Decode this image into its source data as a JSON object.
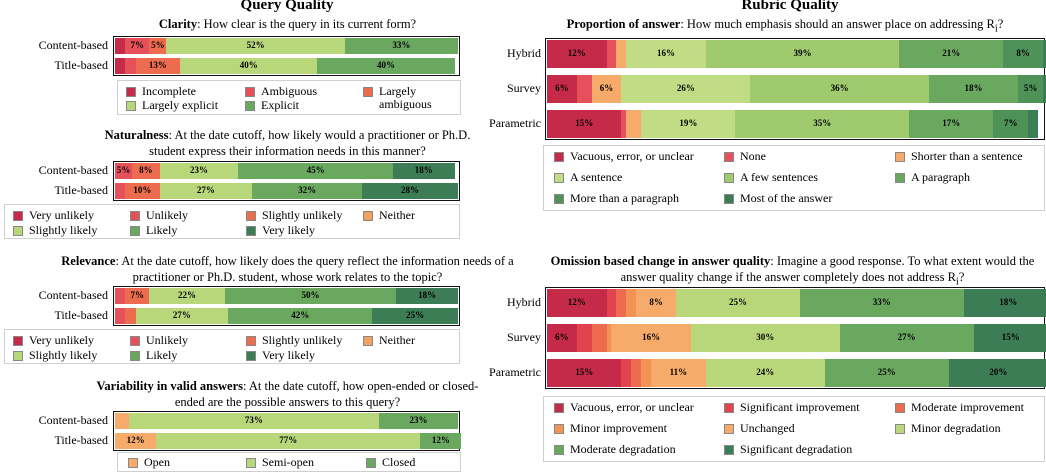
{
  "headings": {
    "left": "Query Quality",
    "right": "Rubric Quality"
  },
  "palettes": {
    "clarity": [
      "#c52a48",
      "#e5505a",
      "#ed6b4e",
      "#b8d77b",
      "#6aa860"
    ],
    "five": [
      "#c52a48",
      "#e5505a",
      "#ed6b4e",
      "#f4a15e",
      "#b8d77b",
      "#6aa860",
      "#3d7d56"
    ],
    "variability": [
      "#f7ab6a",
      "#b8d77b",
      "#6aa860"
    ],
    "proportion": [
      "#c52a48",
      "#e5505a",
      "#f7ab6a",
      "#c0dc85",
      "#9fca6e",
      "#6aa860",
      "#4f9257",
      "#3d7d56"
    ],
    "omission": [
      "#c52a48",
      "#e2434e",
      "#ed6b4e",
      "#f29356",
      "#f7ab6a",
      "#b8d77b",
      "#6aa860",
      "#3d7d56"
    ]
  },
  "panels": [
    {
      "id": "clarity",
      "title_bold": "Clarity",
      "title_rest": ": How clear is the query in its current form?",
      "legend": [
        "Incomplete",
        "Ambiguous",
        "Largely ambiguous",
        "Largely explicit",
        "Explicit"
      ]
    },
    {
      "id": "naturalness",
      "title_bold": "Naturalness",
      "title_rest": ": At the date cutoff, how likely would a practitioner or Ph.D. student express their information needs in this manner?",
      "legend": [
        "Very unlikely",
        "Unlikely",
        "Slightly unlikely",
        "Neither",
        "Slightly likely",
        "Likely",
        "Very likely"
      ]
    },
    {
      "id": "relevance",
      "title_bold": "Relevance",
      "title_rest": ": At the date cutoff, how likely does the query reflect the information needs of a practitioner or Ph.D. student, whose work relates to the topic?",
      "legend": [
        "Very unlikely",
        "Unlikely",
        "Slightly unlikely",
        "Neither",
        "Slightly likely",
        "Likely",
        "Very likely"
      ]
    },
    {
      "id": "variability",
      "title_bold": "Variability in valid answers",
      "title_rest": ": At the date cutoff, how open-ended or closed-ended are the possible answers to this query?",
      "legend": [
        "Open",
        "Semi-open",
        "Closed"
      ]
    },
    {
      "id": "proportion",
      "title_bold": "Proportion of answer",
      "title_rest": ": How much emphasis should an answer place on addressing R",
      "title_sub": "i",
      "title_end": "?",
      "legend": [
        "Vacuous, error, or unclear",
        "None",
        "Shorter than a sentence",
        "A sentence",
        "A few sentences",
        "A paragraph",
        "More than a paragraph",
        "Most of the answer"
      ]
    },
    {
      "id": "omission",
      "title_bold": "Omission based change in answer quality",
      "title_rest": ": Imagine a good response. To what extent would the answer quality change if the answer completely does not address R",
      "title_sub": "i",
      "title_end": "?",
      "legend": [
        "Vacuous, error, or unclear",
        "Significant improvement",
        "Moderate improvement",
        "Minor improvement",
        "Unchanged",
        "Minor degradation",
        "Moderate degradation",
        "Significant degradation"
      ]
    }
  ],
  "chart_data": [
    {
      "type": "bar",
      "orientation": "horizontal",
      "stacked": true,
      "normalized": true,
      "id": "clarity",
      "title": "Clarity: How clear is the query in its current form?",
      "categories": [
        "Content-based",
        "Title-based"
      ],
      "series": [
        {
          "name": "Incomplete",
          "values": [
            3,
            3
          ]
        },
        {
          "name": "Ambiguous",
          "values": [
            7,
            3
          ]
        },
        {
          "name": "Largely ambiguous",
          "values": [
            5,
            13
          ]
        },
        {
          "name": "Largely explicit",
          "values": [
            52,
            40
          ]
        },
        {
          "name": "Explicit",
          "values": [
            33,
            40
          ]
        }
      ],
      "labels": [
        [
          "",
          "7%",
          "5%",
          "52%",
          "33%"
        ],
        [
          "",
          "",
          "13%",
          "40%",
          "40%"
        ]
      ],
      "xlim": [
        0,
        100
      ]
    },
    {
      "type": "bar",
      "orientation": "horizontal",
      "stacked": true,
      "normalized": true,
      "id": "naturalness",
      "title": "Naturalness",
      "categories": [
        "Content-based",
        "Title-based"
      ],
      "series": [
        {
          "name": "Very unlikely",
          "values": [
            0,
            0
          ]
        },
        {
          "name": "Unlikely",
          "values": [
            5,
            3
          ]
        },
        {
          "name": "Slightly unlikely",
          "values": [
            8,
            10
          ]
        },
        {
          "name": "Neither",
          "values": [
            0,
            0
          ]
        },
        {
          "name": "Slightly likely",
          "values": [
            23,
            27
          ]
        },
        {
          "name": "Likely",
          "values": [
            45,
            32
          ]
        },
        {
          "name": "Very likely",
          "values": [
            18,
            28
          ]
        }
      ],
      "labels": [
        [
          "",
          "5%",
          "8%",
          "",
          "23%",
          "45%",
          "18%"
        ],
        [
          "",
          "",
          "10%",
          "",
          "27%",
          "32%",
          "28%"
        ]
      ],
      "xlim": [
        0,
        100
      ]
    },
    {
      "type": "bar",
      "orientation": "horizontal",
      "stacked": true,
      "normalized": true,
      "id": "relevance",
      "title": "Relevance",
      "categories": [
        "Content-based",
        "Title-based"
      ],
      "series": [
        {
          "name": "Very unlikely",
          "values": [
            0,
            0
          ]
        },
        {
          "name": "Unlikely",
          "values": [
            3,
            3
          ]
        },
        {
          "name": "Slightly unlikely",
          "values": [
            7,
            3
          ]
        },
        {
          "name": "Neither",
          "values": [
            0,
            0
          ]
        },
        {
          "name": "Slightly likely",
          "values": [
            22,
            27
          ]
        },
        {
          "name": "Likely",
          "values": [
            50,
            42
          ]
        },
        {
          "name": "Very likely",
          "values": [
            18,
            25
          ]
        }
      ],
      "labels": [
        [
          "",
          "",
          "7%",
          "",
          "22%",
          "50%",
          "18%"
        ],
        [
          "",
          "",
          "",
          "",
          "27%",
          "42%",
          "25%"
        ]
      ],
      "xlim": [
        0,
        100
      ]
    },
    {
      "type": "bar",
      "orientation": "horizontal",
      "stacked": true,
      "normalized": true,
      "id": "variability",
      "title": "Variability in valid answers",
      "categories": [
        "Content-based",
        "Title-based"
      ],
      "series": [
        {
          "name": "Open",
          "values": [
            4,
            12
          ]
        },
        {
          "name": "Semi-open",
          "values": [
            73,
            77
          ]
        },
        {
          "name": "Closed",
          "values": [
            23,
            12
          ]
        }
      ],
      "labels": [
        [
          "",
          "73%",
          "23%"
        ],
        [
          "12%",
          "77%",
          "12%"
        ]
      ],
      "xlim": [
        0,
        100
      ]
    },
    {
      "type": "bar",
      "orientation": "horizontal",
      "stacked": true,
      "normalized": true,
      "id": "proportion",
      "title": "Proportion of answer",
      "categories": [
        "Hybrid",
        "Survey",
        "Parametric"
      ],
      "series": [
        {
          "name": "Vacuous, error, or unclear",
          "values": [
            12,
            6,
            15
          ]
        },
        {
          "name": "None",
          "values": [
            2,
            3,
            1
          ]
        },
        {
          "name": "Shorter than a sentence",
          "values": [
            2,
            6,
            3
          ]
        },
        {
          "name": "A sentence",
          "values": [
            16,
            26,
            19
          ]
        },
        {
          "name": "A few sentences",
          "values": [
            39,
            36,
            35
          ]
        },
        {
          "name": "A paragraph",
          "values": [
            21,
            18,
            17
          ]
        },
        {
          "name": "More than a paragraph",
          "values": [
            8,
            5,
            7
          ]
        },
        {
          "name": "Most of the answer",
          "values": [
            1,
            1,
            2
          ]
        }
      ],
      "labels": [
        [
          "12%",
          "",
          "",
          "16%",
          "39%",
          "21%",
          "8%",
          ""
        ],
        [
          "6%",
          "",
          "6%",
          "26%",
          "36%",
          "18%",
          "5%",
          ""
        ],
        [
          "15%",
          "",
          "",
          "19%",
          "35%",
          "17%",
          "7%",
          ""
        ]
      ],
      "xlim": [
        0,
        100
      ]
    },
    {
      "type": "bar",
      "orientation": "horizontal",
      "stacked": true,
      "normalized": true,
      "id": "omission",
      "title": "Omission based change in answer quality",
      "categories": [
        "Hybrid",
        "Survey",
        "Parametric"
      ],
      "series": [
        {
          "name": "Vacuous, error, or unclear",
          "values": [
            12,
            6,
            15
          ]
        },
        {
          "name": "Significant improvement",
          "values": [
            2,
            3,
            2
          ]
        },
        {
          "name": "Moderate improvement",
          "values": [
            2,
            3,
            2
          ]
        },
        {
          "name": "Minor improvement",
          "values": [
            2,
            1,
            2
          ]
        },
        {
          "name": "Unchanged",
          "values": [
            8,
            16,
            11
          ]
        },
        {
          "name": "Minor degradation",
          "values": [
            25,
            30,
            24
          ]
        },
        {
          "name": "Moderate degradation",
          "values": [
            33,
            27,
            25
          ]
        },
        {
          "name": "Significant degradation",
          "values": [
            18,
            15,
            20
          ]
        }
      ],
      "labels": [
        [
          "12%",
          "",
          "",
          "",
          "8%",
          "25%",
          "33%",
          "18%"
        ],
        [
          "6%",
          "",
          "",
          "",
          "16%",
          "30%",
          "27%",
          "15%"
        ],
        [
          "15%",
          "",
          "",
          "",
          "11%",
          "24%",
          "25%",
          "20%"
        ]
      ],
      "xlim": [
        0,
        100
      ]
    }
  ]
}
